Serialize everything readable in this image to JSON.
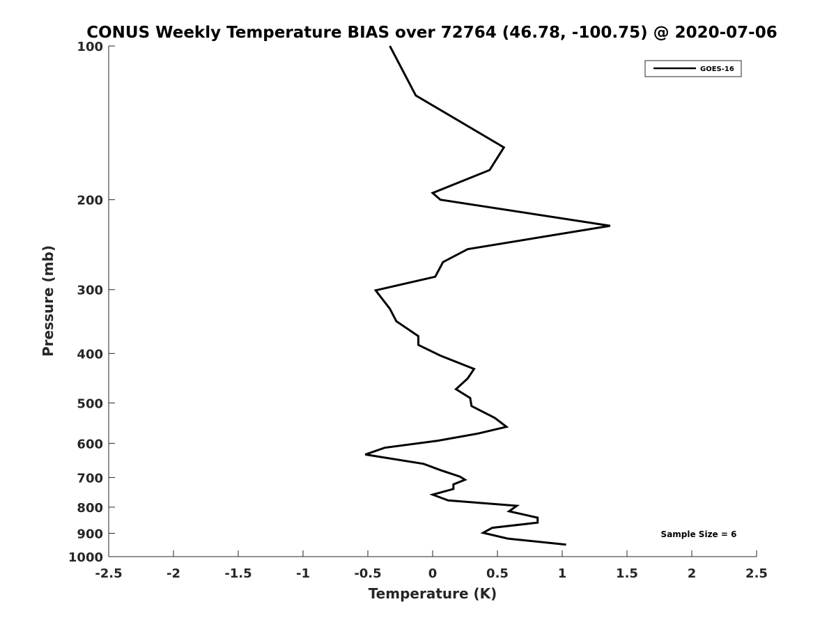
{
  "chart_data": {
    "type": "line",
    "title": "CONUS Weekly Temperature BIAS over 72764 (46.78, -100.75) @ 2020-07-06",
    "xlabel": "Temperature (K)",
    "ylabel": "Pressure (mb)",
    "xlim": [
      -2.5,
      2.5
    ],
    "ylim": [
      100,
      1000
    ],
    "yscale": "log",
    "y_reversed": true,
    "grid": false,
    "legend_position": "top-right",
    "x_ticks": [
      -2.5,
      -2,
      -1.5,
      -1,
      -0.5,
      0,
      0.5,
      1,
      1.5,
      2,
      2.5
    ],
    "x_tick_labels": [
      "-2.5",
      "-2",
      "-1.5",
      "-1",
      "-0.5",
      "0",
      "0.5",
      "1",
      "1.5",
      "2",
      "2.5"
    ],
    "y_ticks": [
      100,
      200,
      300,
      400,
      500,
      600,
      700,
      800,
      900,
      1000
    ],
    "y_tick_labels": [
      "100",
      "200",
      "300",
      "400",
      "500",
      "600",
      "700",
      "800",
      "900",
      "1000"
    ],
    "series": [
      {
        "name": "GOES-16",
        "color": "#000000",
        "points": [
          {
            "x": -0.33,
            "y": 100
          },
          {
            "x": -0.13,
            "y": 125
          },
          {
            "x": 0.55,
            "y": 158
          },
          {
            "x": 0.44,
            "y": 175
          },
          {
            "x": 0.0,
            "y": 194
          },
          {
            "x": 0.06,
            "y": 200
          },
          {
            "x": 1.37,
            "y": 225
          },
          {
            "x": 0.27,
            "y": 250
          },
          {
            "x": 0.08,
            "y": 265
          },
          {
            "x": 0.02,
            "y": 283
          },
          {
            "x": -0.44,
            "y": 301
          },
          {
            "x": -0.33,
            "y": 327
          },
          {
            "x": -0.28,
            "y": 346
          },
          {
            "x": -0.11,
            "y": 370
          },
          {
            "x": -0.11,
            "y": 385
          },
          {
            "x": 0.06,
            "y": 404
          },
          {
            "x": 0.32,
            "y": 429
          },
          {
            "x": 0.27,
            "y": 448
          },
          {
            "x": 0.18,
            "y": 470
          },
          {
            "x": 0.29,
            "y": 489
          },
          {
            "x": 0.3,
            "y": 507
          },
          {
            "x": 0.48,
            "y": 535
          },
          {
            "x": 0.57,
            "y": 557
          },
          {
            "x": 0.35,
            "y": 574
          },
          {
            "x": 0.04,
            "y": 593
          },
          {
            "x": -0.37,
            "y": 612
          },
          {
            "x": -0.52,
            "y": 631
          },
          {
            "x": -0.07,
            "y": 658
          },
          {
            "x": 0.06,
            "y": 677
          },
          {
            "x": 0.21,
            "y": 697
          },
          {
            "x": 0.25,
            "y": 707
          },
          {
            "x": 0.16,
            "y": 722
          },
          {
            "x": 0.16,
            "y": 737
          },
          {
            "x": 0.0,
            "y": 756
          },
          {
            "x": 0.12,
            "y": 776
          },
          {
            "x": 0.65,
            "y": 795
          },
          {
            "x": 0.59,
            "y": 815
          },
          {
            "x": 0.81,
            "y": 839
          },
          {
            "x": 0.81,
            "y": 858
          },
          {
            "x": 0.46,
            "y": 878
          },
          {
            "x": 0.39,
            "y": 898
          },
          {
            "x": 0.58,
            "y": 922
          },
          {
            "x": 1.03,
            "y": 947
          }
        ]
      }
    ],
    "annotations": [
      {
        "text": "Sample Size = 6"
      }
    ]
  }
}
